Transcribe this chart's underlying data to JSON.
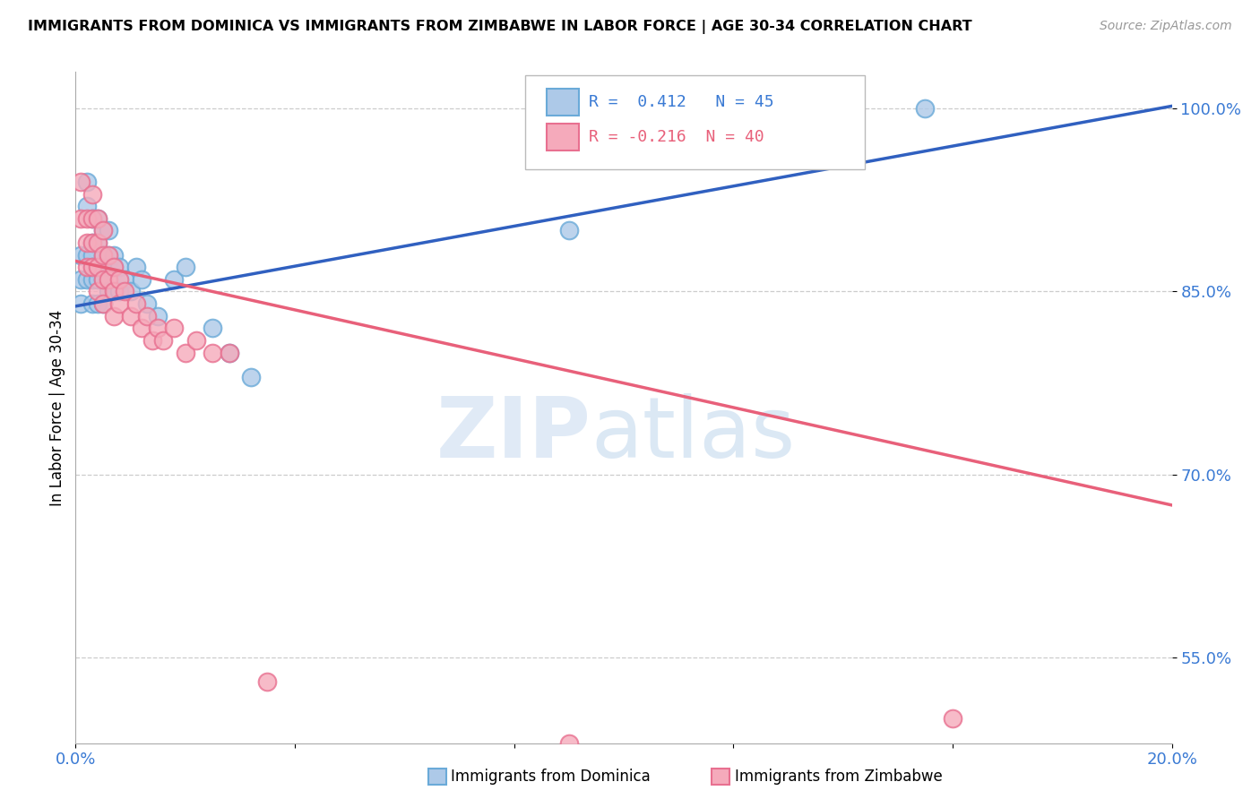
{
  "title": "IMMIGRANTS FROM DOMINICA VS IMMIGRANTS FROM ZIMBABWE IN LABOR FORCE | AGE 30-34 CORRELATION CHART",
  "source": "Source: ZipAtlas.com",
  "ylabel": "In Labor Force | Age 30-34",
  "xlim": [
    0.0,
    0.2
  ],
  "ylim": [
    0.48,
    1.03
  ],
  "ytick_values": [
    0.55,
    0.7,
    0.85,
    1.0
  ],
  "ytick_labels": [
    "55.0%",
    "70.0%",
    "85.0%",
    "100.0%"
  ],
  "dominica_color": "#adc9e8",
  "zimbabwe_color": "#f5aabb",
  "dominica_edge": "#6aaad8",
  "zimbabwe_edge": "#e87090",
  "line_dominica_color": "#3060c0",
  "line_zimbabwe_color": "#e8607a",
  "R_dominica": 0.412,
  "N_dominica": 45,
  "R_zimbabwe": -0.216,
  "N_zimbabwe": 40,
  "legend_dominica": "Immigrants from Dominica",
  "legend_zimbabwe": "Immigrants from Zimbabwe",
  "dominica_x": [
    0.001,
    0.001,
    0.001,
    0.002,
    0.002,
    0.002,
    0.002,
    0.003,
    0.003,
    0.003,
    0.003,
    0.003,
    0.003,
    0.004,
    0.004,
    0.004,
    0.004,
    0.004,
    0.005,
    0.005,
    0.005,
    0.005,
    0.005,
    0.006,
    0.006,
    0.006,
    0.006,
    0.007,
    0.007,
    0.007,
    0.008,
    0.008,
    0.009,
    0.01,
    0.011,
    0.012,
    0.013,
    0.015,
    0.018,
    0.02,
    0.025,
    0.028,
    0.032,
    0.09,
    0.155
  ],
  "dominica_y": [
    0.88,
    0.86,
    0.84,
    0.94,
    0.92,
    0.88,
    0.86,
    0.91,
    0.89,
    0.88,
    0.87,
    0.86,
    0.84,
    0.91,
    0.89,
    0.87,
    0.86,
    0.84,
    0.9,
    0.88,
    0.87,
    0.86,
    0.84,
    0.9,
    0.88,
    0.87,
    0.85,
    0.88,
    0.87,
    0.85,
    0.87,
    0.85,
    0.86,
    0.85,
    0.87,
    0.86,
    0.84,
    0.83,
    0.86,
    0.87,
    0.82,
    0.8,
    0.78,
    0.9,
    1.0
  ],
  "zimbabwe_x": [
    0.001,
    0.001,
    0.002,
    0.002,
    0.002,
    0.003,
    0.003,
    0.003,
    0.003,
    0.004,
    0.004,
    0.004,
    0.004,
    0.005,
    0.005,
    0.005,
    0.005,
    0.006,
    0.006,
    0.007,
    0.007,
    0.007,
    0.008,
    0.008,
    0.009,
    0.01,
    0.011,
    0.012,
    0.013,
    0.014,
    0.015,
    0.016,
    0.018,
    0.02,
    0.022,
    0.025,
    0.028,
    0.035,
    0.09,
    0.16
  ],
  "zimbabwe_y": [
    0.94,
    0.91,
    0.91,
    0.89,
    0.87,
    0.93,
    0.91,
    0.89,
    0.87,
    0.91,
    0.89,
    0.87,
    0.85,
    0.9,
    0.88,
    0.86,
    0.84,
    0.88,
    0.86,
    0.87,
    0.85,
    0.83,
    0.86,
    0.84,
    0.85,
    0.83,
    0.84,
    0.82,
    0.83,
    0.81,
    0.82,
    0.81,
    0.82,
    0.8,
    0.81,
    0.8,
    0.8,
    0.53,
    0.48,
    0.5
  ],
  "line_dom_x0": 0.0,
  "line_dom_y0": 0.838,
  "line_dom_x1": 0.2,
  "line_dom_y1": 1.002,
  "line_zim_x0": 0.0,
  "line_zim_y0": 0.875,
  "line_zim_x1": 0.2,
  "line_zim_y1": 0.675
}
